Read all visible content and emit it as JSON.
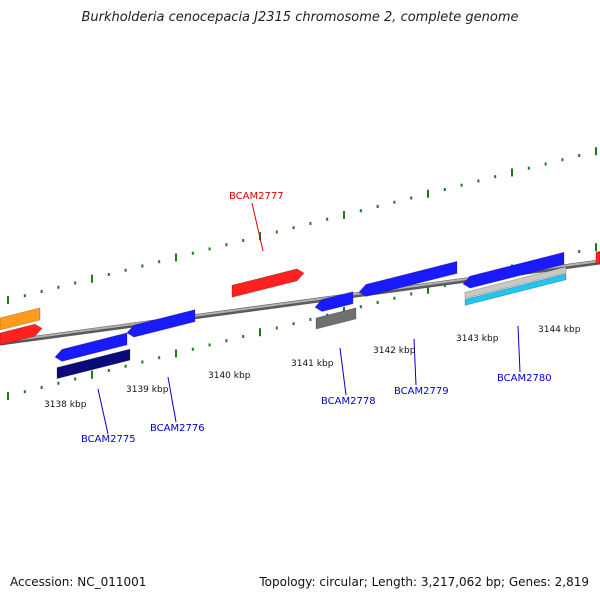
{
  "title": "Burkholderia cenocepacia J2315 chromosome 2, complete genome",
  "footer": {
    "accession": "Accession: NC_011001",
    "stats": "Topology: circular; Length: 3,217,062 bp; Genes: 2,819"
  },
  "colors": {
    "backbone": "#8a8a8a",
    "tick": "#1a7a1a",
    "forward_gene": "#ff2020",
    "reverse_gene": "#1a1aff",
    "dark_blue": "#0a0a7a",
    "gray_feature": "#707070",
    "light_gray_feature": "#c8c8c8",
    "cyan_feature": "#22c4f0",
    "orange_feature": "#ff9a1a",
    "label_forward": "#dd0000",
    "label_reverse": "#0000cc"
  },
  "scale_labels": [
    "3138 kbp",
    "3139 kbp",
    "3140 kbp",
    "3141 kbp",
    "3142 kbp",
    "3143 kbp",
    "3144 kbp"
  ],
  "gene_labels": [
    {
      "text": "BCAM2777",
      "strand": "forward"
    },
    {
      "text": "BCAM2775",
      "strand": "reverse"
    },
    {
      "text": "BCAM2776",
      "strand": "reverse"
    },
    {
      "text": "BCAM2778",
      "strand": "reverse"
    },
    {
      "text": "BCAM2779",
      "strand": "reverse"
    },
    {
      "text": "BCAM2780",
      "strand": "reverse"
    }
  ]
}
